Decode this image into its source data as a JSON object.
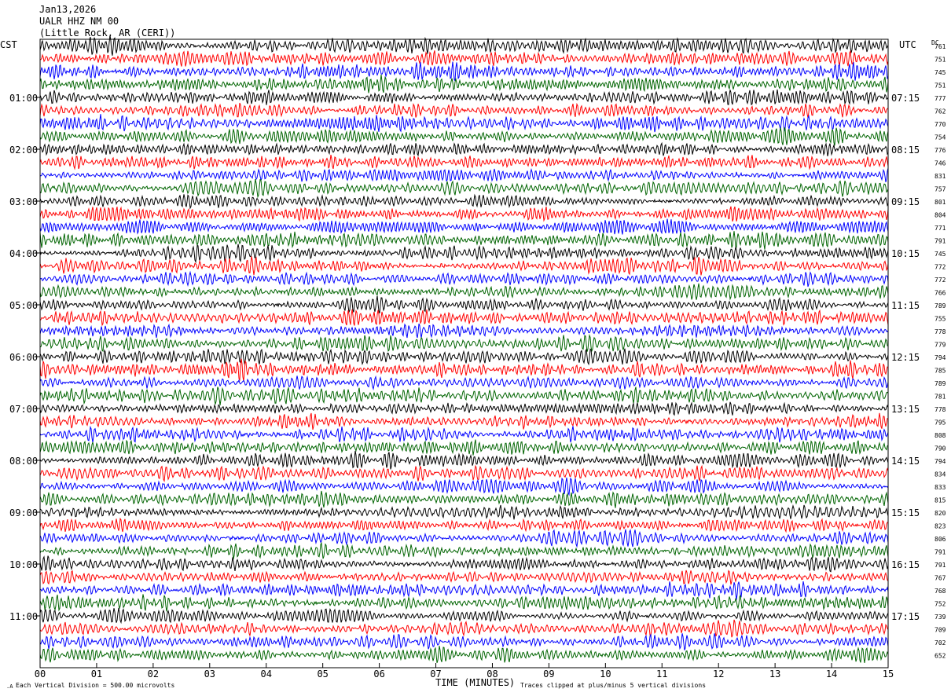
{
  "header": {
    "date": "Jan13,2026",
    "station": "UALR HHZ NM 00",
    "location": "(Little Rock, AR (CERI))"
  },
  "chart_data": {
    "type": "line",
    "subtype": "helicorder",
    "left_timezone": "CST",
    "right_timezone": "UTC",
    "dc_label": "DC",
    "xlabel": "TIME (MINUTES)",
    "x_ticks": [
      "00",
      "01",
      "02",
      "03",
      "04",
      "05",
      "06",
      "07",
      "08",
      "09",
      "10",
      "11",
      "12",
      "13",
      "14",
      "15"
    ],
    "xlim": [
      0,
      15
    ],
    "left_hour_labels": [
      "01:00",
      "02:00",
      "03:00",
      "04:00",
      "05:00",
      "06:00",
      "07:00",
      "08:00",
      "09:00",
      "10:00",
      "11:00"
    ],
    "right_hour_labels": [
      "07:15",
      "08:15",
      "09:15",
      "10:15",
      "11:15",
      "12:15",
      "13:15",
      "14:15",
      "15:15",
      "16:15",
      "17:15"
    ],
    "trace_colors": [
      "#000000",
      "#ff0000",
      "#0000ff",
      "#006400"
    ],
    "dc_offsets": [
      761,
      751,
      745,
      751,
      777,
      762,
      770,
      754,
      776,
      746,
      831,
      757,
      801,
      804,
      771,
      791,
      745,
      772,
      772,
      766,
      789,
      755,
      778,
      779,
      794,
      785,
      789,
      781,
      778,
      795,
      808,
      790,
      794,
      834,
      833,
      815,
      820,
      823,
      806,
      791,
      791,
      767,
      768,
      752,
      739,
      709,
      702,
      652
    ],
    "scale_note": "Each Vertical Division =  500.00 microvolts",
    "clip_note": "Traces clipped at plus/minus 5 vertical divisions"
  }
}
